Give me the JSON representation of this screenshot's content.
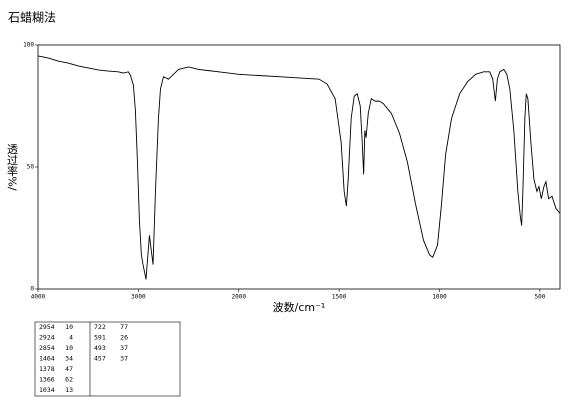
{
  "chart_data": {
    "type": "line",
    "title": "石蜡糊法",
    "x_label": "波数/cm⁻¹",
    "y_label": "透过率%/",
    "xlim": [
      4000,
      400
    ],
    "xticks": [
      4000,
      3000,
      2000,
      1500,
      1000,
      500
    ],
    "x_scale_change_at": 2000,
    "ylim": [
      0,
      100
    ],
    "yticks": [
      0,
      50,
      100
    ],
    "color": "#000000",
    "x": [
      4000,
      3900,
      3800,
      3700,
      3600,
      3500,
      3400,
      3300,
      3200,
      3150,
      3100,
      3080,
      3050,
      3030,
      3010,
      2990,
      2970,
      2954,
      2924,
      2890,
      2854,
      2830,
      2800,
      2780,
      2750,
      2700,
      2650,
      2600,
      2500,
      2400,
      2300,
      2200,
      2100,
      2000,
      1900,
      1800,
      1700,
      1600,
      1560,
      1520,
      1490,
      1475,
      1464,
      1455,
      1440,
      1425,
      1410,
      1395,
      1385,
      1378,
      1372,
      1366,
      1355,
      1340,
      1320,
      1300,
      1280,
      1260,
      1240,
      1200,
      1160,
      1120,
      1080,
      1050,
      1034,
      1010,
      990,
      970,
      940,
      900,
      860,
      820,
      780,
      750,
      735,
      722,
      712,
      700,
      680,
      665,
      650,
      630,
      610,
      598,
      591,
      585,
      575,
      568,
      560,
      545,
      530,
      515,
      505,
      493,
      480,
      470,
      457,
      440,
      420,
      400
    ],
    "values": [
      95.5,
      94.7,
      93.4,
      92.6,
      91.4,
      90.6,
      89.8,
      89.3,
      89,
      88.5,
      89,
      87.7,
      83.6,
      73.4,
      52.9,
      28.3,
      14,
      10,
      4,
      22,
      10,
      40,
      70,
      82,
      87,
      86,
      88,
      90,
      91,
      90,
      89.5,
      89,
      88.5,
      88,
      87.5,
      87,
      86.5,
      86,
      84,
      78,
      60,
      40,
      34,
      45,
      70,
      79,
      80,
      75,
      60,
      47,
      65,
      62,
      72,
      78,
      77,
      77,
      76,
      74,
      72,
      64,
      52,
      35,
      20,
      14,
      13,
      18,
      35,
      55,
      70,
      80,
      85,
      88,
      89,
      89,
      86,
      77,
      86,
      89,
      90,
      88,
      82,
      65,
      40,
      30,
      26,
      40,
      70,
      80,
      78,
      60,
      45,
      40,
      42,
      37,
      42,
      44,
      37,
      38,
      33,
      31
    ],
    "peak_table": [
      [
        2954,
        10
      ],
      [
        2924,
        4
      ],
      [
        2854,
        10
      ],
      [
        1464,
        34
      ],
      [
        1378,
        47
      ],
      [
        1366,
        62
      ],
      [
        1034,
        13
      ],
      [
        722,
        77
      ],
      [
        591,
        26
      ],
      [
        493,
        37
      ],
      [
        457,
        37
      ]
    ]
  }
}
